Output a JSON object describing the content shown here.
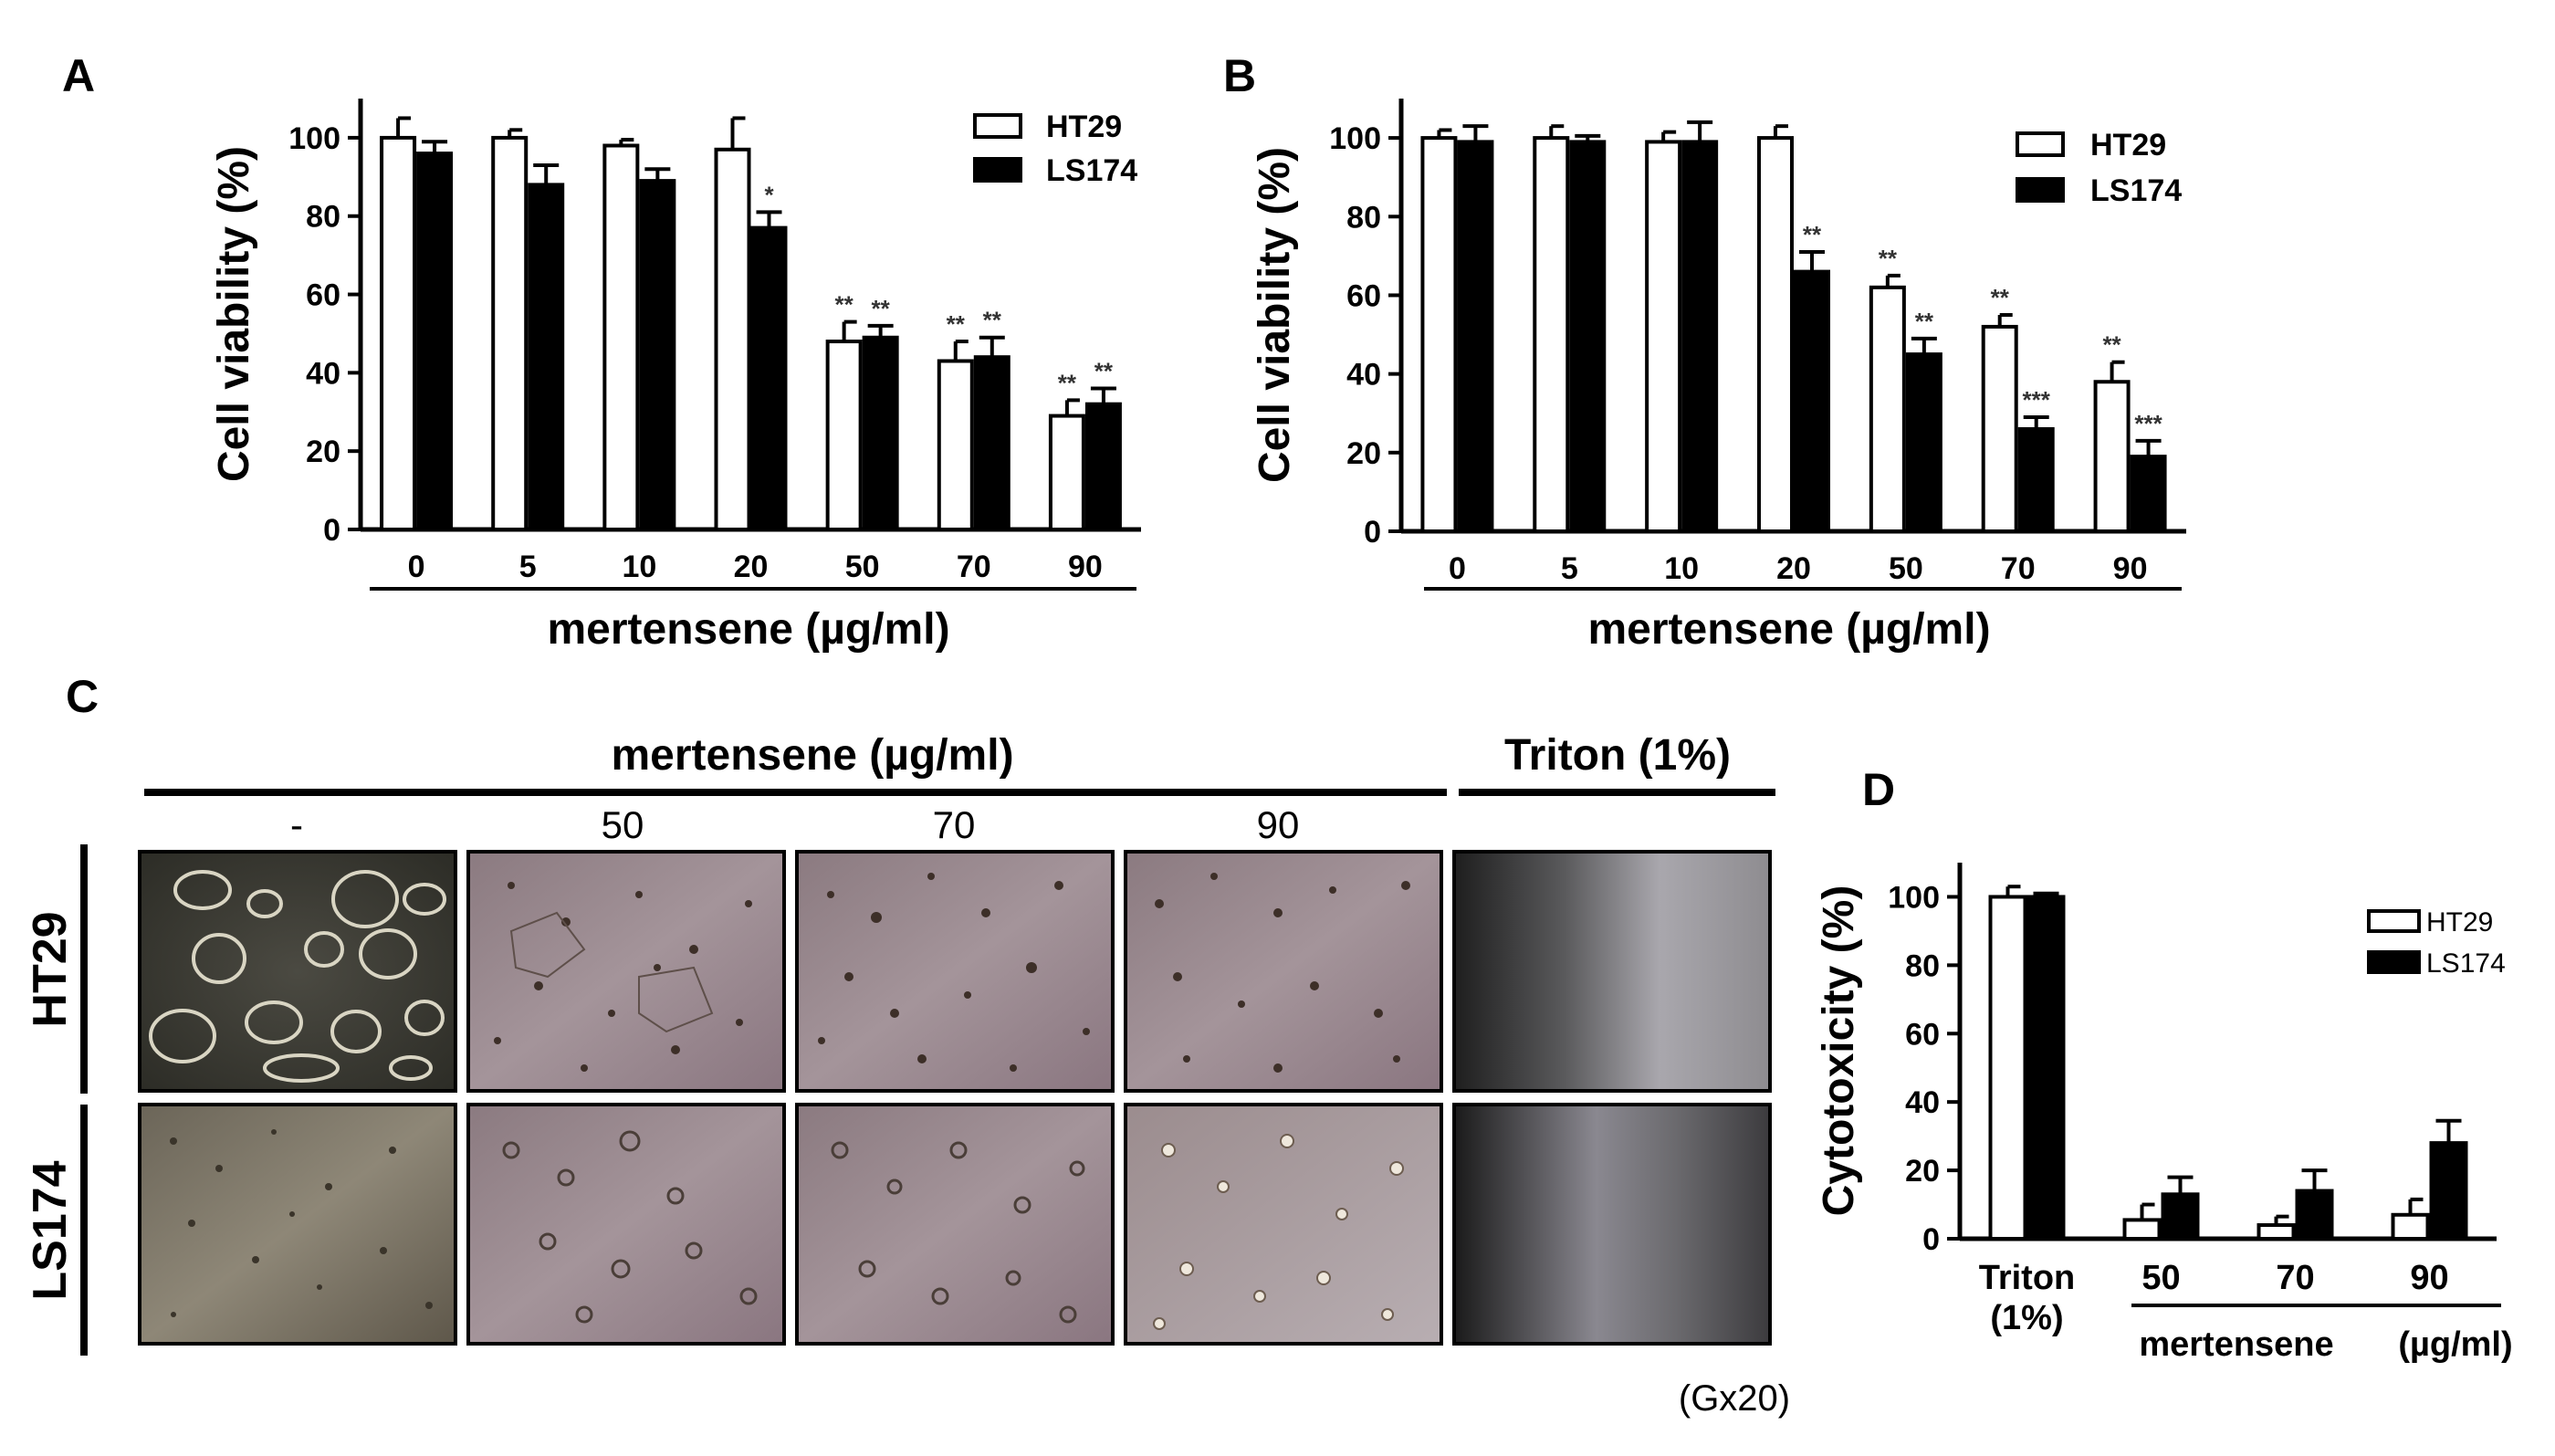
{
  "panels": {
    "a": "A",
    "b": "B",
    "c": "C",
    "d": "D"
  },
  "colors": {
    "series1": "#ffffff",
    "series2": "#000000",
    "axis": "#000000"
  },
  "chart_data": [
    {
      "id": "A",
      "type": "bar",
      "categories": [
        "0",
        "5",
        "10",
        "20",
        "50",
        "70",
        "90"
      ],
      "xlabel": "mertensene (µg/ml)",
      "ylabel": "Cell viability (%)",
      "ylim": [
        0,
        110
      ],
      "yticks": [
        "0",
        "20",
        "40",
        "60",
        "80",
        "100"
      ],
      "legend_position": "top-right",
      "series": [
        {
          "name": "HT29",
          "values": [
            100,
            100,
            98,
            97,
            48,
            43,
            29
          ],
          "errors": [
            5,
            2,
            1.5,
            8,
            5,
            5,
            4
          ],
          "stars": [
            "",
            "",
            "",
            "",
            "**",
            "**",
            "**"
          ]
        },
        {
          "name": "LS174",
          "values": [
            96,
            88,
            89,
            77,
            49,
            44,
            32
          ],
          "errors": [
            3,
            5,
            3,
            4,
            3,
            5,
            4
          ],
          "stars": [
            "",
            "",
            "",
            "*",
            "**",
            "**",
            "**"
          ]
        }
      ]
    },
    {
      "id": "B",
      "type": "bar",
      "categories": [
        "0",
        "5",
        "10",
        "20",
        "50",
        "70",
        "90"
      ],
      "xlabel": "mertensene (µg/ml)",
      "ylabel": "Cell viability (%)",
      "ylim": [
        0,
        110
      ],
      "yticks": [
        "0",
        "20",
        "40",
        "60",
        "80",
        "100"
      ],
      "legend_position": "top-right",
      "series": [
        {
          "name": "HT29",
          "values": [
            100,
            100,
            99,
            100,
            62,
            52,
            38
          ],
          "errors": [
            2,
            3,
            2.5,
            3,
            3,
            3,
            5
          ],
          "stars": [
            "",
            "",
            "",
            "",
            "**",
            "**",
            "**"
          ]
        },
        {
          "name": "LS174",
          "values": [
            99,
            99,
            99,
            66,
            45,
            26,
            19
          ],
          "errors": [
            4,
            1.5,
            5,
            5,
            4,
            3,
            4
          ],
          "stars": [
            "",
            "",
            "",
            "**",
            "**",
            "***",
            "***"
          ]
        }
      ]
    },
    {
      "id": "D",
      "type": "bar",
      "categories": [
        "Triton (1%)",
        "50",
        "70",
        "90"
      ],
      "category_lines": [
        [
          "Triton",
          "(1%)"
        ],
        [
          "50"
        ],
        [
          "70"
        ],
        [
          "90"
        ]
      ],
      "xlabel_left": "mertensene",
      "xlabel_right": "(µg/ml)",
      "ylabel": "Cytotoxicity (%)",
      "ylim": [
        0,
        110
      ],
      "yticks": [
        "0",
        "20",
        "40",
        "60",
        "80",
        "100"
      ],
      "legend_position": "top-right",
      "series": [
        {
          "name": "HT29",
          "values": [
            100,
            5.5,
            4,
            7
          ],
          "errors": [
            3,
            4.5,
            2.5,
            4.5
          ]
        },
        {
          "name": "LS174",
          "values": [
            100,
            13,
            14,
            28
          ],
          "errors": [
            1,
            5,
            6,
            6.5
          ]
        }
      ]
    }
  ],
  "panel_c": {
    "header": "mertensene (µg/ml)",
    "triton_header": "Triton (1%)",
    "columns": [
      "-",
      "50",
      "70",
      "90"
    ],
    "rows": [
      "HT29",
      "LS174"
    ],
    "magnification": "(Gx20)"
  }
}
